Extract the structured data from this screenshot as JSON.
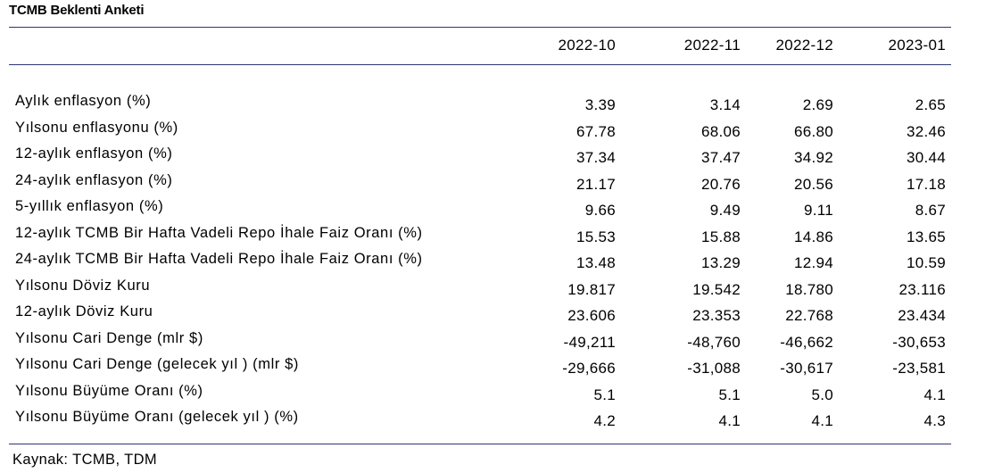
{
  "title": "TCMB Beklenti Anketi",
  "columns": [
    "2022-10",
    "2022-11",
    "2022-12",
    "2023-01"
  ],
  "rows": [
    {
      "label": "Aylık enflasyon (%)",
      "values": [
        "3.39",
        "3.14",
        "2.69",
        "2.65"
      ]
    },
    {
      "label": "Yılsonu enflasyonu (%)",
      "values": [
        "67.78",
        "68.06",
        "66.80",
        "32.46"
      ]
    },
    {
      "label": "12-aylık enflasyon (%)",
      "values": [
        "37.34",
        "37.47",
        "34.92",
        "30.44"
      ]
    },
    {
      "label": "24-aylık enflasyon (%)",
      "values": [
        "21.17",
        "20.76",
        "20.56",
        "17.18"
      ]
    },
    {
      "label": "5-yıllık enflasyon (%)",
      "values": [
        "9.66",
        "9.49",
        "9.11",
        "8.67"
      ]
    },
    {
      "label": "12-aylık TCMB Bir Hafta Vadeli Repo İhale Faiz Oranı (%)",
      "values": [
        "15.53",
        "15.88",
        "14.86",
        "13.65"
      ]
    },
    {
      "label": "24-aylık TCMB Bir Hafta Vadeli Repo İhale Faiz Oranı (%)",
      "values": [
        "13.48",
        "13.29",
        "12.94",
        "10.59"
      ]
    },
    {
      "label": "Yılsonu Döviz Kuru",
      "values": [
        "19.817",
        "19.542",
        "18.780",
        "23.116"
      ]
    },
    {
      "label": "12-aylık Döviz Kuru",
      "values": [
        "23.606",
        "23.353",
        "22.768",
        "23.434"
      ]
    },
    {
      "label": "Yılsonu Cari Denge (mlr $)",
      "values": [
        "-49,211",
        "-48,760",
        "-46,662",
        "-30,653"
      ]
    },
    {
      "label": "Yılsonu Cari Denge (gelecek yıl ) (mlr $)",
      "values": [
        "-29,666",
        "-31,088",
        "-30,617",
        "-23,581"
      ]
    },
    {
      "label": "Yılsonu Büyüme Oranı (%)",
      "values": [
        "5.1",
        "5.1",
        "5.0",
        "4.1"
      ]
    },
    {
      "label": "Yılsonu Büyüme Oranı (gelecek yıl ) (%)",
      "values": [
        "4.2",
        "4.1",
        "4.1",
        "4.3"
      ]
    }
  ],
  "source": "Kaynak: TCMB, TDM"
}
